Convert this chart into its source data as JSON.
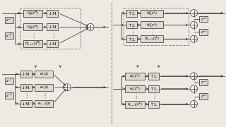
{
  "bg_color": "#ede9e3",
  "line_color": "#444444",
  "box_bg": "#dedad3",
  "dash_color": "#888888",
  "fig_width": 3.2,
  "fig_height": 1.8,
  "dpi": 100
}
